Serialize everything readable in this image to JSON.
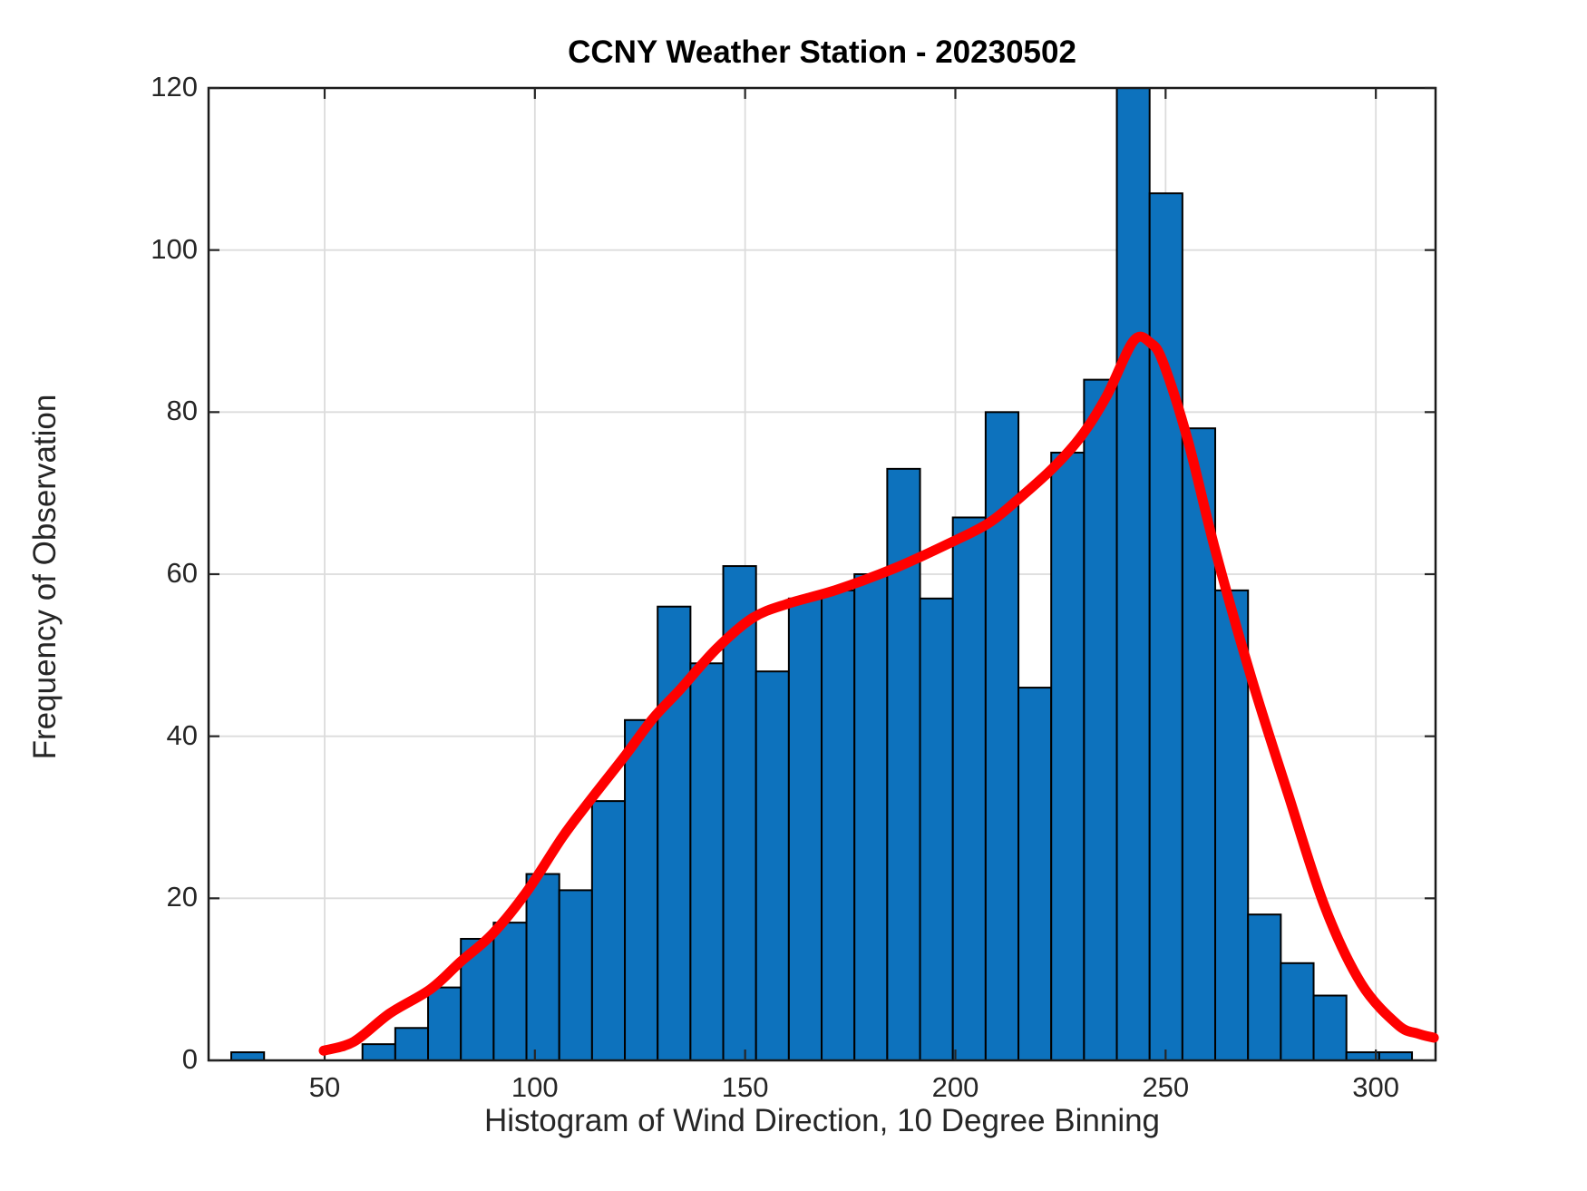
{
  "chart_data": {
    "type": "histogram",
    "title": "CCNY Weather Station - 20230502",
    "xlabel": "Histogram of Wind Direction, 10 Degree Binning",
    "ylabel": "Frequency of Observation",
    "x_tick_labels": [
      "50",
      "100",
      "150",
      "200",
      "250",
      "300"
    ],
    "x_tick_values": [
      50,
      100,
      150,
      200,
      250,
      300
    ],
    "y_tick_labels": [
      "0",
      "20",
      "40",
      "60",
      "80",
      "100",
      "120"
    ],
    "y_tick_values": [
      0,
      20,
      40,
      60,
      80,
      100,
      120
    ],
    "xlim": [
      22.4,
      314.2
    ],
    "ylim": [
      0,
      120
    ],
    "grid": true,
    "first_bin_start_deg": 27.8,
    "bin_width_deg": 7.8,
    "counts": [
      1,
      0,
      0,
      0,
      2,
      4,
      9,
      15,
      17,
      23,
      21,
      32,
      42,
      56,
      49,
      61,
      48,
      57,
      58,
      60,
      73,
      57,
      67,
      80,
      46,
      75,
      84,
      120,
      107,
      78,
      58,
      18,
      12,
      8,
      1,
      1
    ],
    "series": [
      {
        "name": "wind-direction-histogram",
        "style": "bar",
        "fill_color": "#0d72bd",
        "edge_color": "#000000"
      },
      {
        "name": "smoothed-density-curve",
        "style": "line",
        "line_color": "#ff0000",
        "points": [
          [
            49.8,
            1.2
          ],
          [
            56.9,
            2.3
          ],
          [
            65.5,
            5.8
          ],
          [
            75.2,
            8.8
          ],
          [
            82.4,
            12.2
          ],
          [
            89.9,
            15.6
          ],
          [
            97.9,
            20.7
          ],
          [
            106.5,
            27.5
          ],
          [
            113.0,
            32.0
          ],
          [
            121.6,
            37.7
          ],
          [
            128.1,
            42.2
          ],
          [
            134.6,
            45.8
          ],
          [
            143.2,
            50.8
          ],
          [
            151.8,
            54.6
          ],
          [
            160.4,
            56.4
          ],
          [
            171.9,
            58.1
          ],
          [
            186.3,
            60.9
          ],
          [
            199.7,
            64.1
          ],
          [
            207.9,
            66.3
          ],
          [
            214.4,
            69.0
          ],
          [
            223.0,
            73.0
          ],
          [
            229.9,
            77.0
          ],
          [
            236.0,
            82.0
          ],
          [
            242.4,
            88.8
          ],
          [
            246.5,
            88.5
          ],
          [
            249.5,
            86.0
          ],
          [
            255.3,
            76.5
          ],
          [
            261.8,
            63.0
          ],
          [
            270.4,
            47.2
          ],
          [
            279.1,
            32.9
          ],
          [
            287.9,
            18.9
          ],
          [
            296.5,
            9.5
          ],
          [
            305.2,
            4.4
          ],
          [
            310.0,
            3.3
          ],
          [
            313.8,
            2.8
          ]
        ]
      }
    ],
    "colors": {
      "bar_fill": "#0d72bd",
      "bar_edge": "#000000",
      "curve": "#ff0000",
      "axis_box": "#1a1a1a",
      "grid": "#dcdcdc",
      "tick_text": "#262626",
      "title_text": "#000000",
      "background": "#ffffff"
    }
  }
}
